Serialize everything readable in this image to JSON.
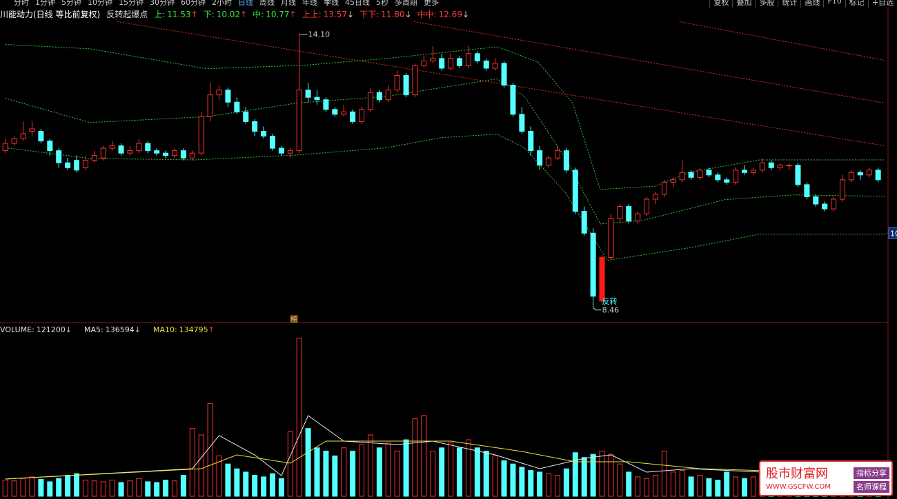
{
  "toolbar": {
    "periods": [
      "分时",
      "1分钟",
      "5分钟",
      "10分钟",
      "15分钟",
      "30分钟",
      "60分钟",
      "2小时",
      "日线",
      "周线",
      "月线",
      "年线",
      "季线",
      "45日线",
      "5秒",
      "多周期",
      "更多"
    ],
    "tools": [
      "复权",
      "叠加",
      "多股",
      "统计",
      "画线",
      "F10",
      "标记",
      "+自选"
    ]
  },
  "chart_data": {
    "type": "candlestick",
    "title": "川能动力(日线 等比前复权)",
    "indicator": "反转起爆点",
    "indicator_values": [
      {
        "label": "上:",
        "value": "11.53",
        "arrow": "↑",
        "color": "#3ee03e"
      },
      {
        "label": "下:",
        "value": "10.02",
        "arrow": "↑",
        "color": "#3ee03e"
      },
      {
        "label": "中:",
        "value": "10.77",
        "arrow": "↑",
        "color": "#3ee03e"
      },
      {
        "label": "上上:",
        "value": "13.57",
        "arrow": "↓",
        "color": "#ff3c3c"
      },
      {
        "label": "下下:",
        "value": "11.80",
        "arrow": "↓",
        "color": "#ff3c3c"
      },
      {
        "label": "中中:",
        "value": "12.69",
        "arrow": "↓",
        "color": "#ff3c3c"
      }
    ],
    "xlim": [
      -0.6,
      99.5
    ],
    "ylim": [
      8.2,
      14.55
    ],
    "yticks": [
      10
    ],
    "up_color": "#ff3232",
    "down_color": "#54ffff",
    "signal_index": 67,
    "signal_label": "反转",
    "badge": "榜",
    "annotations": [
      {
        "x": 33,
        "value": 14.1,
        "label": "14.10"
      },
      {
        "x": 66,
        "value": 8.46,
        "label": "8.46"
      }
    ],
    "candles": [
      [
        11.7,
        11.95,
        11.65,
        11.85
      ],
      [
        11.85,
        12.0,
        11.8,
        11.95
      ],
      [
        11.95,
        12.3,
        11.9,
        12.05
      ],
      [
        12.1,
        12.3,
        12.0,
        12.15
      ],
      [
        12.1,
        12.15,
        11.85,
        11.9
      ],
      [
        11.9,
        11.95,
        11.6,
        11.7
      ],
      [
        11.7,
        11.75,
        11.35,
        11.45
      ],
      [
        11.45,
        11.55,
        11.3,
        11.35
      ],
      [
        11.5,
        11.6,
        11.25,
        11.3
      ],
      [
        11.35,
        11.6,
        11.3,
        11.5
      ],
      [
        11.5,
        11.7,
        11.45,
        11.6
      ],
      [
        11.55,
        11.8,
        11.5,
        11.75
      ],
      [
        11.75,
        11.9,
        11.7,
        11.8
      ],
      [
        11.8,
        11.85,
        11.6,
        11.65
      ],
      [
        11.65,
        11.8,
        11.6,
        11.7
      ],
      [
        11.7,
        11.95,
        11.65,
        11.85
      ],
      [
        11.85,
        11.9,
        11.65,
        11.7
      ],
      [
        11.7,
        11.75,
        11.6,
        11.65
      ],
      [
        11.65,
        11.7,
        11.55,
        11.6
      ],
      [
        11.6,
        11.75,
        11.55,
        11.7
      ],
      [
        11.7,
        11.75,
        11.5,
        11.55
      ],
      [
        11.55,
        11.7,
        11.5,
        11.65
      ],
      [
        11.65,
        12.5,
        11.6,
        12.4
      ],
      [
        12.4,
        13.1,
        12.3,
        12.85
      ],
      [
        12.85,
        13.05,
        12.75,
        12.95
      ],
      [
        12.95,
        13.0,
        12.6,
        12.7
      ],
      [
        12.7,
        12.8,
        12.45,
        12.5
      ],
      [
        12.5,
        12.6,
        12.25,
        12.3
      ],
      [
        12.3,
        12.35,
        12.0,
        12.1
      ],
      [
        12.1,
        12.2,
        11.95,
        12.0
      ],
      [
        12.0,
        12.05,
        11.7,
        11.75
      ],
      [
        11.75,
        11.8,
        11.6,
        11.65
      ],
      [
        11.65,
        11.75,
        11.55,
        11.7
      ],
      [
        11.7,
        14.1,
        11.65,
        12.95
      ],
      [
        12.95,
        13.1,
        12.7,
        12.8
      ],
      [
        12.8,
        12.95,
        12.65,
        12.75
      ],
      [
        12.75,
        12.8,
        12.5,
        12.55
      ],
      [
        12.55,
        12.6,
        12.4,
        12.45
      ],
      [
        12.45,
        12.65,
        12.4,
        12.5
      ],
      [
        12.5,
        12.55,
        12.25,
        12.3
      ],
      [
        12.3,
        12.6,
        12.25,
        12.55
      ],
      [
        12.55,
        13.0,
        12.5,
        12.9
      ],
      [
        12.9,
        12.95,
        12.7,
        12.75
      ],
      [
        12.75,
        13.05,
        12.7,
        12.95
      ],
      [
        12.95,
        13.35,
        12.9,
        13.25
      ],
      [
        13.25,
        13.3,
        12.8,
        12.85
      ],
      [
        12.85,
        13.5,
        12.8,
        13.45
      ],
      [
        13.45,
        13.65,
        13.4,
        13.55
      ],
      [
        13.55,
        13.85,
        13.5,
        13.6
      ],
      [
        13.6,
        13.7,
        13.35,
        13.4
      ],
      [
        13.4,
        13.7,
        13.35,
        13.6
      ],
      [
        13.6,
        13.65,
        13.4,
        13.45
      ],
      [
        13.45,
        13.85,
        13.4,
        13.7
      ],
      [
        13.7,
        13.75,
        13.5,
        13.55
      ],
      [
        13.55,
        13.6,
        13.35,
        13.4
      ],
      [
        13.4,
        13.6,
        13.35,
        13.5
      ],
      [
        13.5,
        13.55,
        13.0,
        13.05
      ],
      [
        13.05,
        13.1,
        12.4,
        12.45
      ],
      [
        12.45,
        12.6,
        12.05,
        12.1
      ],
      [
        12.1,
        12.2,
        11.6,
        11.7
      ],
      [
        11.7,
        11.8,
        11.3,
        11.4
      ],
      [
        11.4,
        11.6,
        11.35,
        11.55
      ],
      [
        11.55,
        11.8,
        11.5,
        11.7
      ],
      [
        11.7,
        11.75,
        11.25,
        11.3
      ],
      [
        11.3,
        11.35,
        10.4,
        10.45
      ],
      [
        10.45,
        10.55,
        9.95,
        10.0
      ],
      [
        10.0,
        10.1,
        8.46,
        8.7
      ],
      [
        8.6,
        9.55,
        8.55,
        9.5
      ],
      [
        9.5,
        10.4,
        9.45,
        10.3
      ],
      [
        10.3,
        10.6,
        10.2,
        10.55
      ],
      [
        10.55,
        10.6,
        10.2,
        10.25
      ],
      [
        10.25,
        10.45,
        10.2,
        10.4
      ],
      [
        10.4,
        10.75,
        10.35,
        10.7
      ],
      [
        10.7,
        10.85,
        10.6,
        10.8
      ],
      [
        10.8,
        11.1,
        10.75,
        11.05
      ],
      [
        11.05,
        11.15,
        10.95,
        11.1
      ],
      [
        11.1,
        11.5,
        11.05,
        11.25
      ],
      [
        11.25,
        11.3,
        11.1,
        11.15
      ],
      [
        11.15,
        11.35,
        11.1,
        11.3
      ],
      [
        11.3,
        11.35,
        11.15,
        11.2
      ],
      [
        11.2,
        11.25,
        11.05,
        11.1
      ],
      [
        11.1,
        11.15,
        11.0,
        11.05
      ],
      [
        11.05,
        11.35,
        11.0,
        11.3
      ],
      [
        11.3,
        11.4,
        11.2,
        11.25
      ],
      [
        11.25,
        11.35,
        11.2,
        11.3
      ],
      [
        11.3,
        11.55,
        11.25,
        11.45
      ],
      [
        11.45,
        11.5,
        11.3,
        11.35
      ],
      [
        11.35,
        11.45,
        11.3,
        11.4
      ],
      [
        11.4,
        11.45,
        11.3,
        11.4
      ],
      [
        11.4,
        11.45,
        10.95,
        11.0
      ],
      [
        11.0,
        11.05,
        10.7,
        10.75
      ],
      [
        10.75,
        10.8,
        10.55,
        10.6
      ],
      [
        10.6,
        10.65,
        10.45,
        10.5
      ],
      [
        10.5,
        10.75,
        10.45,
        10.7
      ],
      [
        10.7,
        11.2,
        10.65,
        11.1
      ],
      [
        11.1,
        11.3,
        11.05,
        11.25
      ],
      [
        11.25,
        11.3,
        11.1,
        11.2
      ],
      [
        11.2,
        11.35,
        11.15,
        11.3
      ],
      [
        11.3,
        11.35,
        11.05,
        11.1
      ]
    ],
    "lines": [
      {
        "color": "#3bc43b",
        "dash": true,
        "x": [
          0,
          9.5,
          22.6,
          33.5,
          42.8,
          55.2,
          59.8,
          63.7,
          66.8,
          73,
          76.9,
          84.7,
          98.8
        ],
        "values": [
          13.89,
          13.8,
          13.39,
          13.46,
          13.6,
          13.84,
          13.53,
          12.68,
          10.9,
          10.97,
          11.26,
          11.51,
          11.51
        ]
      },
      {
        "color": "#3bc43b",
        "dash": true,
        "x": [
          0,
          9.5,
          22.6,
          32.7,
          42.8,
          55.2,
          58.3,
          62.9,
          66.8,
          71.5,
          80.8,
          88.5,
          98.8
        ],
        "values": [
          12.78,
          12.28,
          12.4,
          12.68,
          12.82,
          13.18,
          12.82,
          11.54,
          10.19,
          10.26,
          10.69,
          10.79,
          10.76
        ]
      },
      {
        "color": "#3bc43b",
        "dash": true,
        "x": [
          0,
          9.5,
          21.2,
          32.7,
          42.8,
          49,
          55.2,
          58.3,
          62.9,
          67.6,
          76.9,
          84.7,
          98.8
        ],
        "values": [
          11.76,
          11.54,
          11.51,
          11.61,
          11.76,
          11.97,
          12.04,
          11.76,
          10.83,
          9.44,
          9.7,
          9.98,
          9.98
        ]
      },
      {
        "color": "#e03030",
        "dash": true,
        "x": [
          12.56,
          98.8
        ],
        "values": [
          14.36,
          11.8
        ]
      },
      {
        "color": "#e03030",
        "dash": true,
        "x": [
          45.9,
          98.8
        ],
        "values": [
          14.36,
          12.68
        ]
      },
      {
        "color": "#e03030",
        "dash": true,
        "x": [
          75.7,
          98.8
        ],
        "values": [
          14.36,
          13.56
        ]
      }
    ],
    "volume": {
      "label": "VOLUME:",
      "value": 121200,
      "arrow": "↓",
      "color": "#e0e0e0",
      "ylim": [
        0,
        1025000
      ],
      "ma": [
        {
          "label": "MA5:",
          "value": 136594,
          "arrow": "↓",
          "color": "#e8e8e8"
        },
        {
          "label": "MA10:",
          "value": 134795,
          "arrow": "↑",
          "color": "#f0e040"
        }
      ],
      "values": [
        100000,
        95000,
        110000,
        120000,
        105000,
        90000,
        110000,
        130000,
        140000,
        100000,
        95000,
        90000,
        100000,
        85000,
        95000,
        110000,
        90000,
        85000,
        100000,
        95000,
        130000,
        420000,
        380000,
        575000,
        250000,
        200000,
        170000,
        150000,
        130000,
        120000,
        140000,
        110000,
        400000,
        980000,
        420000,
        300000,
        280000,
        250000,
        300000,
        280000,
        320000,
        380000,
        300000,
        330000,
        280000,
        350000,
        480000,
        500000,
        280000,
        300000,
        330000,
        300000,
        350000,
        300000,
        280000,
        250000,
        220000,
        200000,
        180000,
        160000,
        150000,
        140000,
        130000,
        170000,
        270000,
        240000,
        260000,
        280000,
        260000,
        200000,
        150000,
        120000,
        110000,
        130000,
        280000,
        150000,
        160000,
        120000,
        130000,
        110000,
        100000,
        150000,
        120000,
        110000,
        120000,
        150000,
        100000,
        110000,
        120000,
        130000,
        110000,
        100000,
        120000,
        110000,
        100000,
        110000,
        120000,
        130000,
        121200
      ],
      "ma_lines": [
        {
          "color": "#e8e8e8",
          "x": [
            0,
            21,
            24,
            28,
            31,
            34,
            38,
            44,
            48,
            55,
            60,
            65,
            68,
            72,
            77,
            85,
            90,
            98
          ],
          "values": [
            106750,
            170800,
            375760,
            256200,
            128100,
            499590,
            341600,
            320250,
            341600,
            256200,
            170800,
            234850,
            256200,
            149450,
            170800,
            149450,
            128100,
            136594
          ]
        },
        {
          "color": "#f0e040",
          "x": [
            0,
            22,
            26,
            32,
            36,
            44,
            50,
            58,
            64,
            70,
            78,
            90,
            98
          ],
          "values": [
            106750,
            170800,
            256200,
            204960,
            341600,
            341600,
            341600,
            277550,
            213500,
            213500,
            170800,
            149450,
            134795
          ]
        }
      ]
    }
  },
  "watermark": {
    "title": "股市财富网",
    "url": "WWW.GSCFW.COM",
    "tags": [
      "指标分享",
      "名师课程"
    ]
  }
}
